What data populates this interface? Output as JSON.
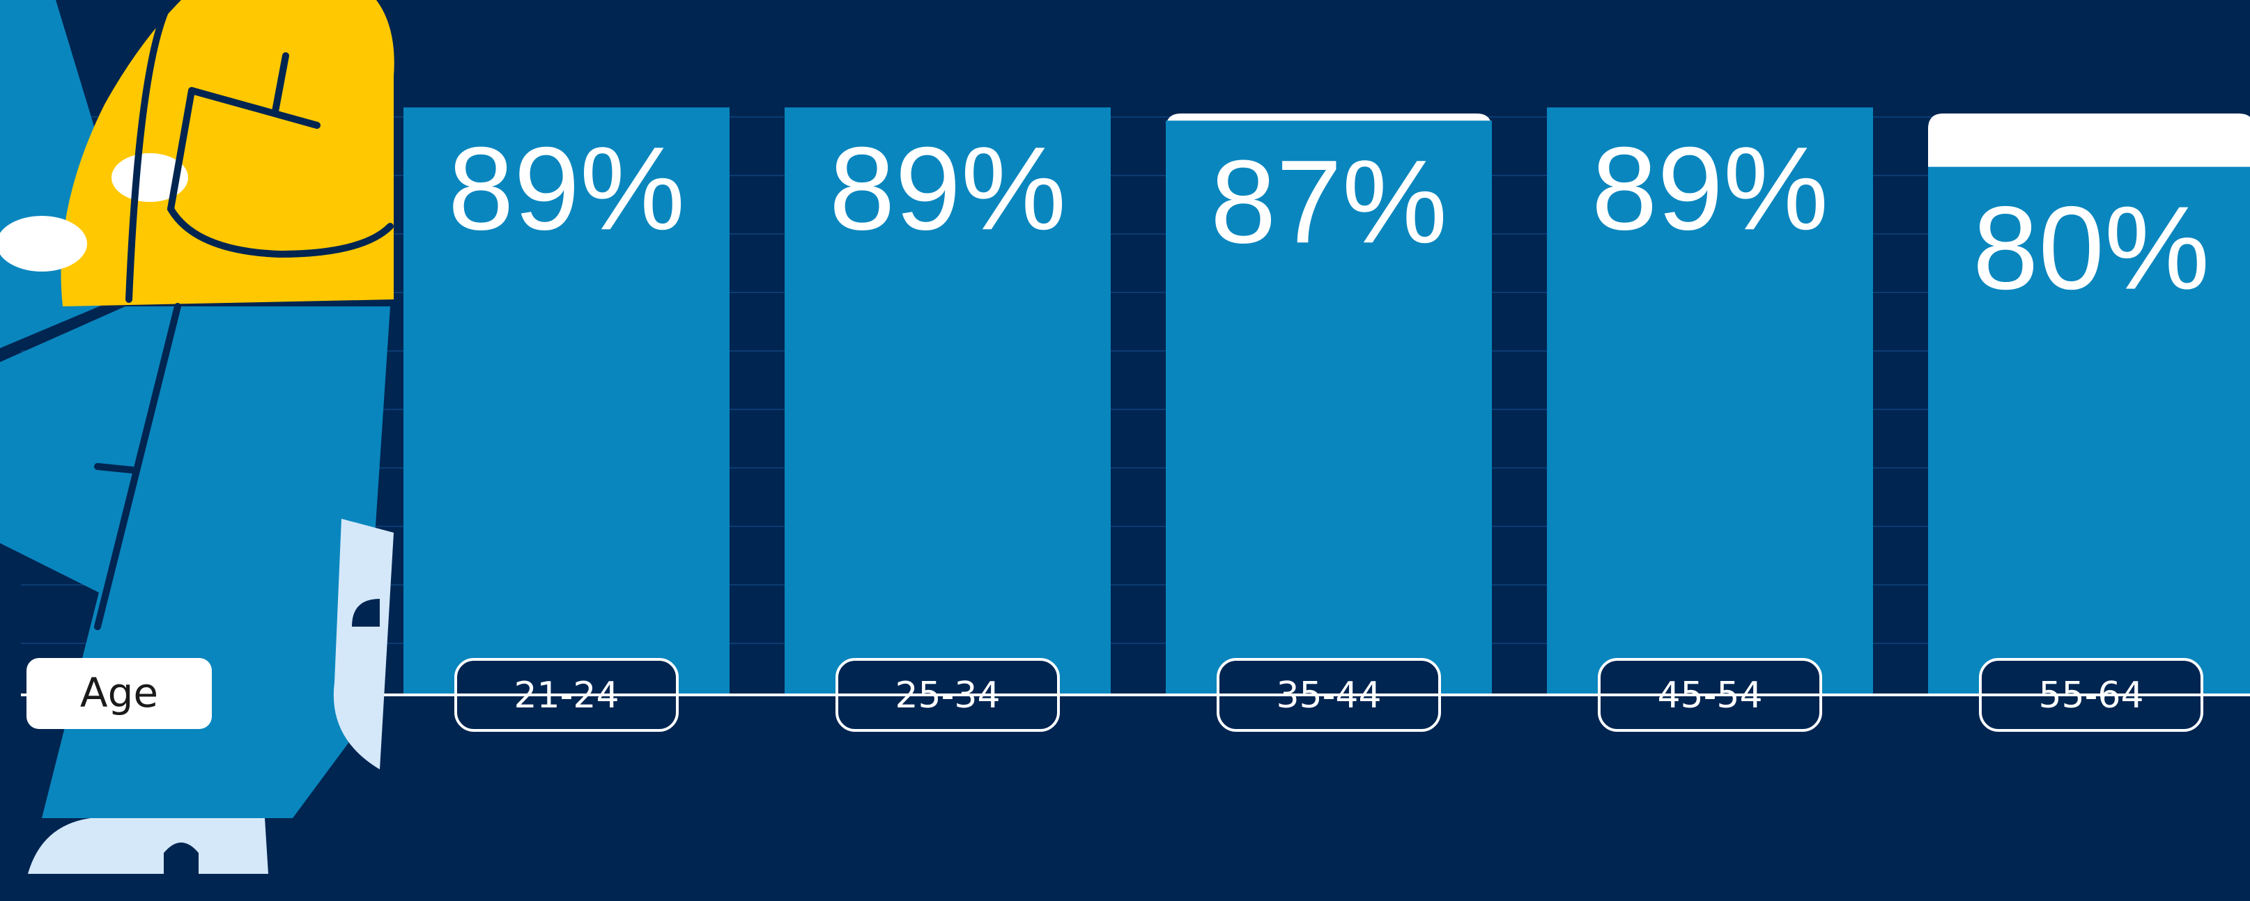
{
  "colors": {
    "background": "#012551",
    "bar_fill": "#0A86BE",
    "bar_cap": "#FFFFFF",
    "label_text": "#FFFFFF",
    "illustration_yellow": "#FFC800",
    "illustration_blue": "#0A86BE",
    "illustration_light": "#D4E8FA"
  },
  "chart_data": {
    "type": "bar",
    "xlabel": "Age",
    "categories": [
      "21-24",
      "25-34",
      "35-44",
      "45-54",
      "55-64"
    ],
    "values": [
      89,
      89,
      87,
      89,
      80
    ],
    "value_labels": [
      "89%",
      "89%",
      "87%",
      "89%",
      "80%"
    ],
    "ylim": [
      0,
      100
    ],
    "grid": true,
    "legend": "none"
  },
  "illustration": {
    "name": "person-illustration"
  }
}
